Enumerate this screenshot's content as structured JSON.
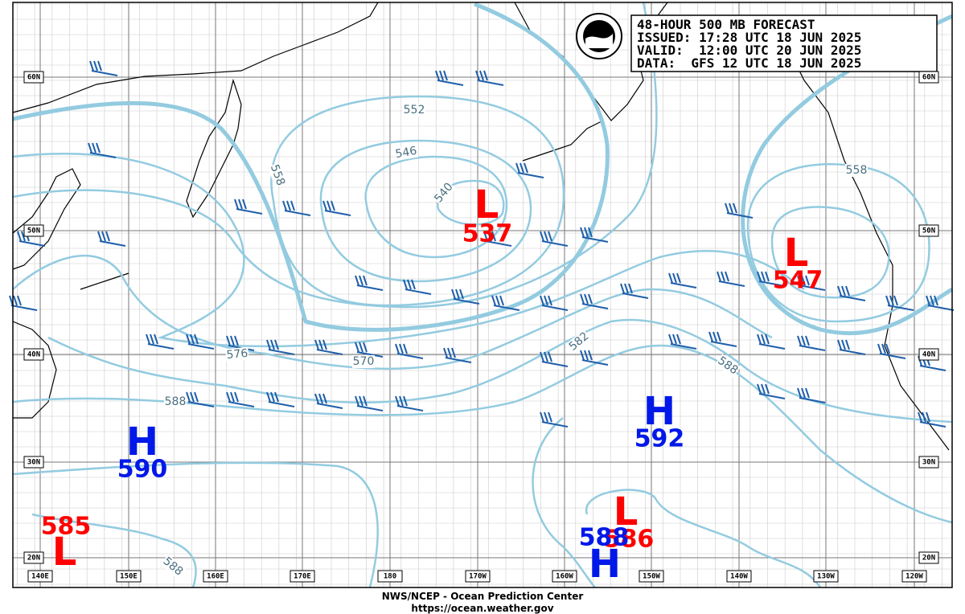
{
  "header": {
    "lines": [
      "48-HOUR 500 MB FORECAST",
      "ISSUED: 17:28 UTC 18 JUN 2025",
      "VALID:  12:00 UTC 20 JUN 2025",
      "DATA:  GFS 12 UTC 18 JUN 2025"
    ]
  },
  "lat_labels": [
    "60N",
    "50N",
    "40N",
    "30N",
    "20N"
  ],
  "lon_labels": [
    "140E",
    "150E",
    "160E",
    "170E",
    "180",
    "170W",
    "160W",
    "150W",
    "140W",
    "130W",
    "120W"
  ],
  "centers": [
    {
      "symbol": "L",
      "value": "537"
    },
    {
      "symbol": "L",
      "value": "547"
    },
    {
      "symbol": "H",
      "value": "592"
    },
    {
      "symbol": "H",
      "value": "590"
    },
    {
      "symbol": "L",
      "value": "585"
    },
    {
      "symbol": "L",
      "value": "586"
    },
    {
      "symbol": "H",
      "value": "588"
    }
  ],
  "contour_labels": [
    "552",
    "546",
    "540",
    "558",
    "576",
    "570",
    "582",
    "588",
    "588",
    "588",
    "558"
  ],
  "footer": {
    "lines": [
      "NWS/NCEP - Ocean Prediction Center",
      "https://ocean.weather.gov"
    ]
  }
}
